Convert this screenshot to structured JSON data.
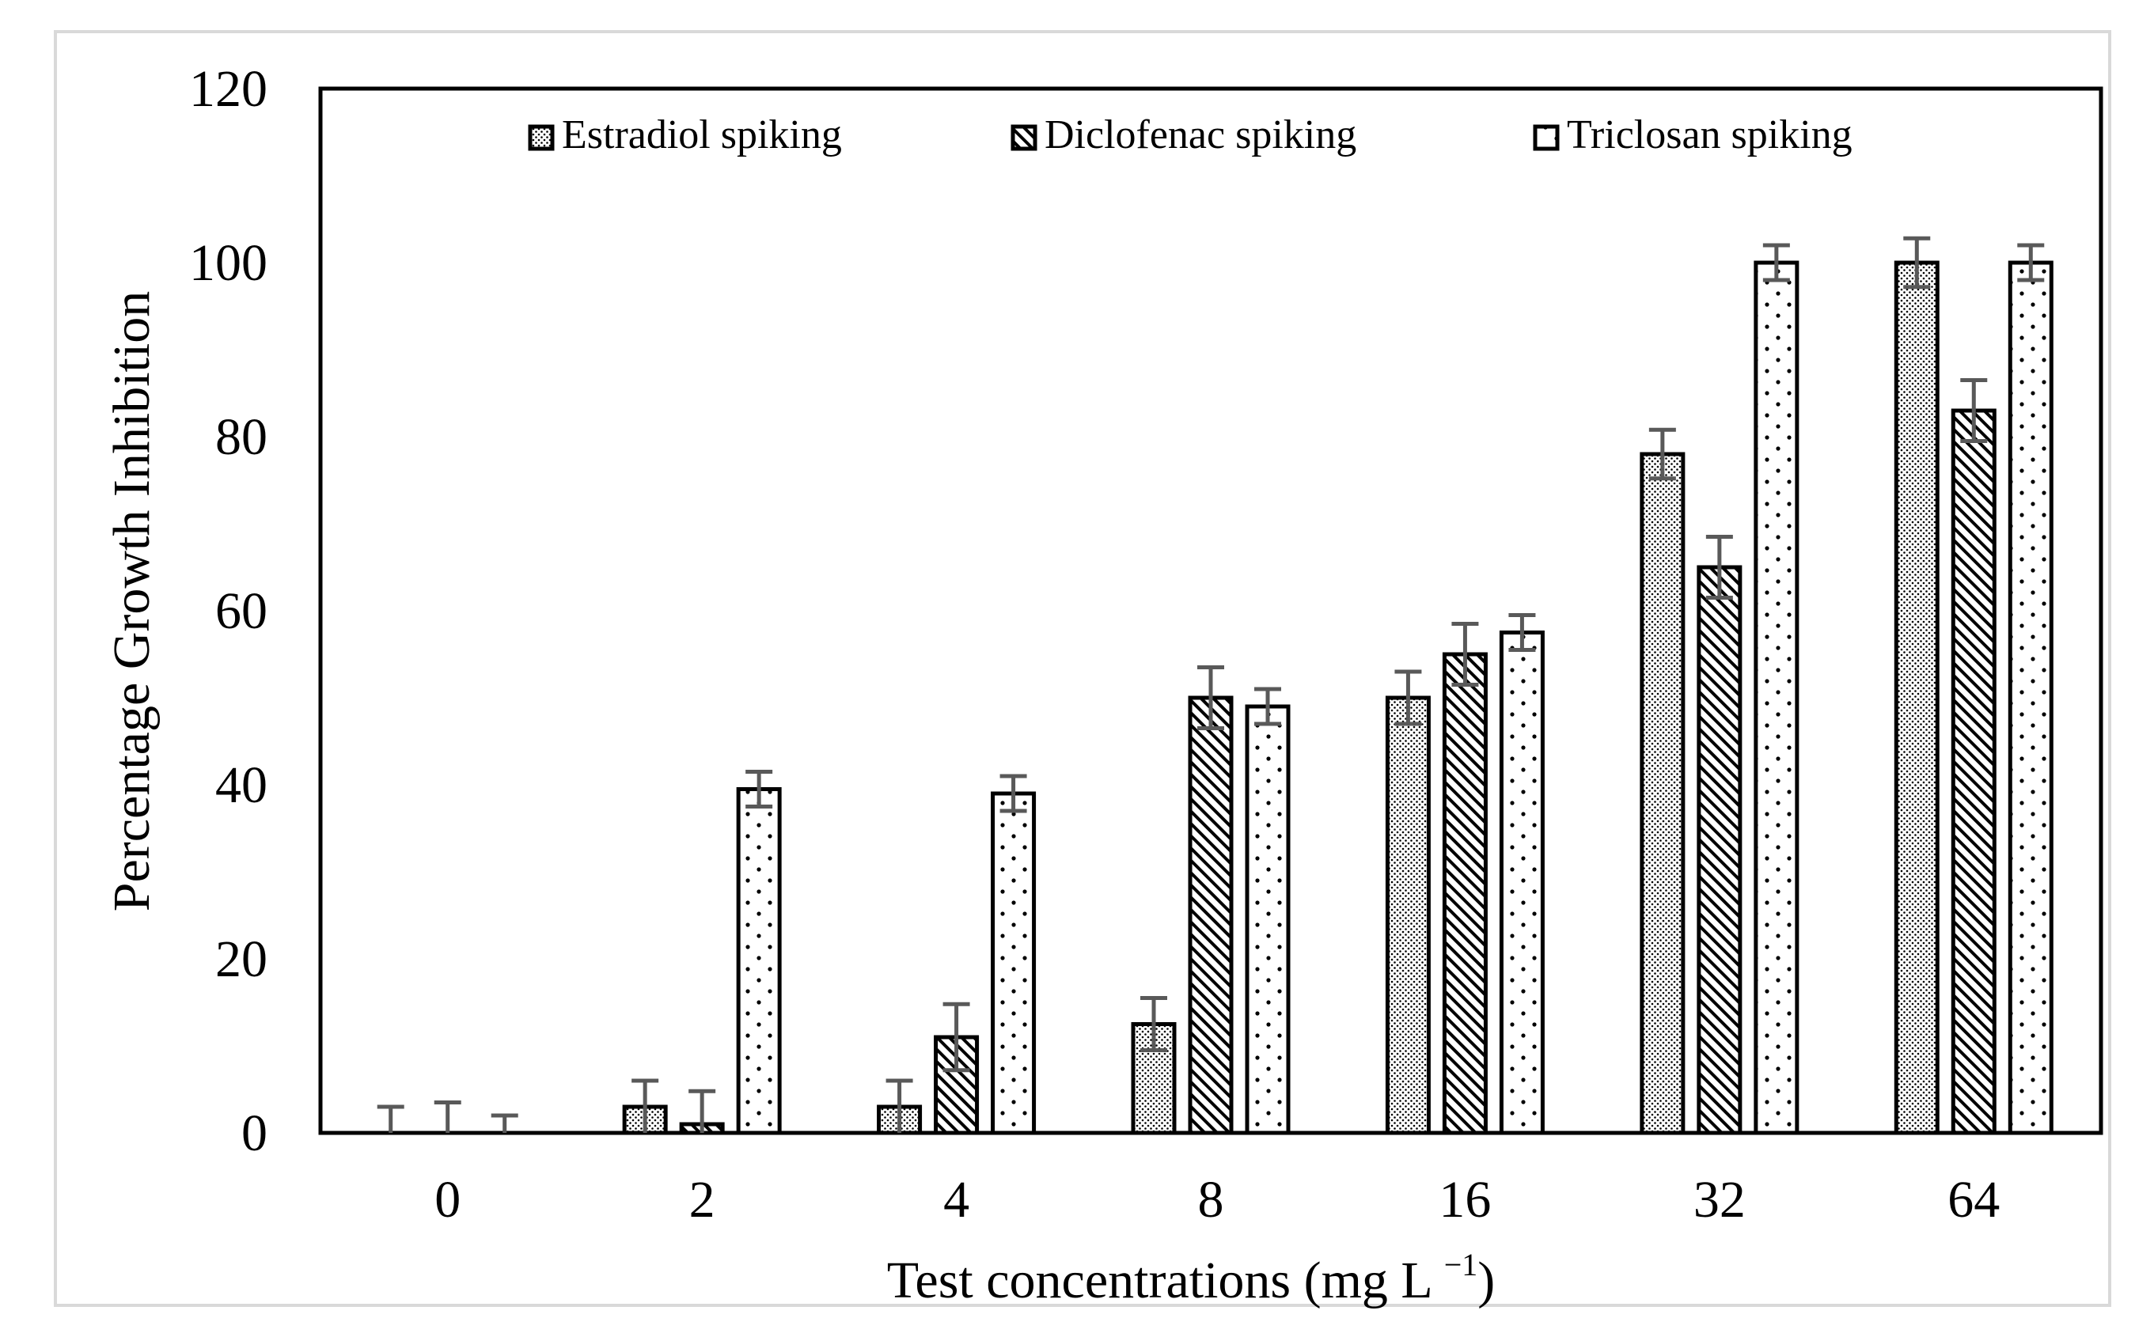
{
  "chart_data": {
    "type": "bar",
    "title": "",
    "xlabel": "Test concentrations (mg L",
    "xlabel_unit_exponent": "−1",
    "xlabel_suffix": ")",
    "ylabel": "Percentage Growth Inhibition",
    "ylim": [
      0,
      120
    ],
    "yticks": [
      0,
      20,
      40,
      60,
      80,
      100,
      120
    ],
    "categories": [
      "0",
      "2",
      "4",
      "8",
      "16",
      "32",
      "64"
    ],
    "legend_position": "top",
    "series": [
      {
        "name": "Estradiol spiking",
        "pattern": "dense-dots",
        "values": [
          0,
          3,
          3,
          12.5,
          50,
          78,
          100
        ],
        "errors": [
          3,
          3,
          3,
          3,
          3,
          2.8,
          2.8
        ]
      },
      {
        "name": "Diclofenac spiking",
        "pattern": "diagonal",
        "values": [
          0,
          1,
          11,
          50,
          55,
          65,
          83
        ],
        "errors": [
          3.5,
          3.8,
          3.8,
          3.5,
          3.5,
          3.5,
          3.5
        ]
      },
      {
        "name": "Triclosan spiking",
        "pattern": "sparse-dots",
        "values": [
          0,
          39.5,
          39,
          49,
          57.5,
          100,
          100
        ],
        "errors": [
          2,
          2,
          2,
          2,
          2,
          2,
          2
        ]
      }
    ],
    "colors": {
      "bar_stroke": "#000000",
      "error_bar": "#595959",
      "frame": "#d9d9d9"
    }
  }
}
